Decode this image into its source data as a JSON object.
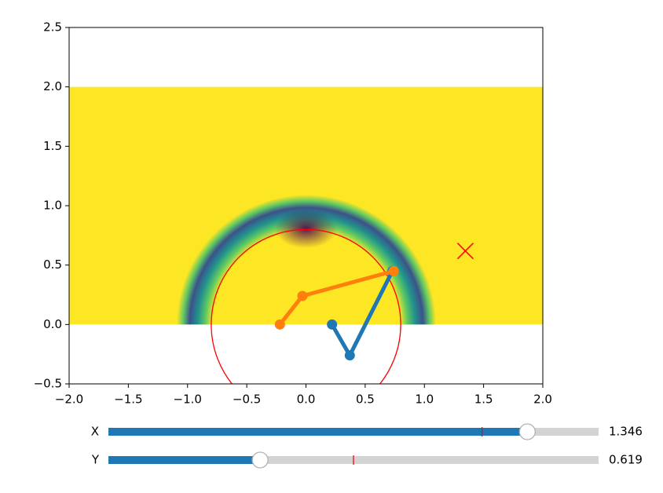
{
  "chart_data": {
    "type": "line",
    "xlim": [
      -2,
      2
    ],
    "ylim": [
      -0.5,
      2.5
    ],
    "xticks": [
      {
        "value": -2,
        "label": "−2.0"
      },
      {
        "value": -1.5,
        "label": "−1.5"
      },
      {
        "value": -1,
        "label": "−1.0"
      },
      {
        "value": -0.5,
        "label": "−0.5"
      },
      {
        "value": 0,
        "label": "0.0"
      },
      {
        "value": 0.5,
        "label": "0.5"
      },
      {
        "value": 1,
        "label": "1.0"
      },
      {
        "value": 1.5,
        "label": "1.5"
      },
      {
        "value": 2,
        "label": "2.0"
      }
    ],
    "yticks": [
      {
        "value": -0.5,
        "label": "−0.5"
      },
      {
        "value": 0,
        "label": "0.0"
      },
      {
        "value": 0.5,
        "label": "0.5"
      },
      {
        "value": 1,
        "label": "1.0"
      },
      {
        "value": 1.5,
        "label": "1.5"
      },
      {
        "value": 2,
        "label": "2.0"
      },
      {
        "value": 2.5,
        "label": "2.5"
      }
    ],
    "series": [
      {
        "color": "#1f77b4",
        "x": [
          0.22,
          0.37,
          0.73
        ],
        "y": [
          0,
          -0.26,
          0.45
        ]
      },
      {
        "color": "#ff7f0e",
        "x": [
          -0.22,
          -0.03,
          0.74
        ],
        "y": [
          0,
          0.24,
          0.45
        ]
      }
    ],
    "region": {
      "xlim": [
        -2,
        2
      ],
      "ylim": [
        0,
        2
      ],
      "color": "#fde725"
    },
    "circle": {
      "center": [
        0,
        0
      ],
      "radius": 0.8,
      "color": "#ff0000"
    },
    "target": {
      "x": 1.346,
      "y": 0.619,
      "color": "#ff0000"
    }
  },
  "sliders": [
    {
      "label": "X",
      "value": 1.346,
      "init": 0.93,
      "range": [
        -2.5,
        2
      ]
    },
    {
      "label": "Y",
      "value": 0.619,
      "init": 1.0,
      "range": [
        0,
        2
      ]
    }
  ]
}
